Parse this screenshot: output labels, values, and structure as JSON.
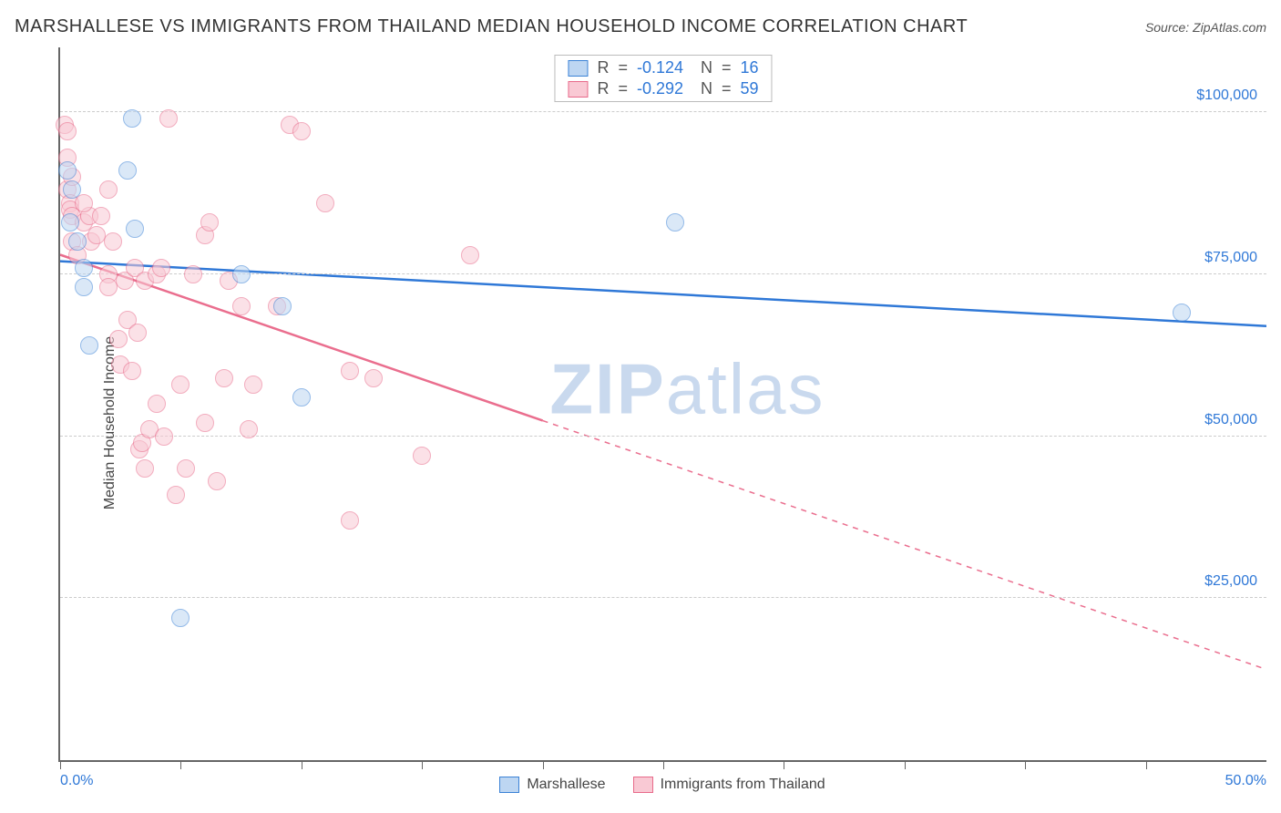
{
  "header": {
    "title": "MARSHALLESE VS IMMIGRANTS FROM THAILAND MEDIAN HOUSEHOLD INCOME CORRELATION CHART",
    "source_prefix": "Source: ",
    "source_name": "ZipAtlas.com"
  },
  "ylabel": "Median Household Income",
  "watermark": {
    "bold": "ZIP",
    "light": "atlas",
    "color": "#c9d9ee"
  },
  "colors": {
    "blue_fill": "#bdd6f2",
    "blue_stroke": "#3b82d6",
    "pink_fill": "#f9c9d4",
    "pink_stroke": "#e86a8a",
    "blue_line": "#2f78d7",
    "pink_line": "#ea6e8e",
    "axis_label": "#2f78d7",
    "grid": "#cccccc",
    "stat_label": "#555555"
  },
  "chart": {
    "type": "scatter-correlation",
    "xlim": [
      0,
      50
    ],
    "ylim": [
      0,
      110000
    ],
    "yticks": [
      {
        "v": 25000,
        "label": "$25,000"
      },
      {
        "v": 50000,
        "label": "$50,000"
      },
      {
        "v": 75000,
        "label": "$75,000"
      },
      {
        "v": 100000,
        "label": "$100,000"
      }
    ],
    "xtick_positions": [
      0,
      5,
      10,
      15,
      20,
      25,
      30,
      35,
      40,
      45
    ],
    "xtick_labels": {
      "0": "0.0%",
      "50": "50.0%"
    },
    "point_radius": 10,
    "point_opacity": 0.55,
    "line_width": 2.5,
    "background": "#ffffff"
  },
  "stats_box": {
    "rows": [
      {
        "swatch": "blue",
        "R_label": "R",
        "eq": "=",
        "R": "-0.124",
        "N_label": "N",
        "N": "16"
      },
      {
        "swatch": "pink",
        "R_label": "R",
        "eq": "=",
        "R": "-0.292",
        "N_label": "N",
        "N": "59"
      }
    ]
  },
  "legend": {
    "items": [
      {
        "swatch": "blue",
        "label": "Marshallese"
      },
      {
        "swatch": "pink",
        "label": "Immigrants from Thailand"
      }
    ]
  },
  "series": {
    "blue": {
      "name": "Marshallese",
      "trend": {
        "x1": 0,
        "y1": 77000,
        "x2": 50,
        "y2": 67000,
        "dashed_from": null
      },
      "points": [
        [
          0.3,
          91000
        ],
        [
          0.4,
          83000
        ],
        [
          0.5,
          88000
        ],
        [
          0.7,
          80000
        ],
        [
          3.0,
          99000
        ],
        [
          3.1,
          82000
        ],
        [
          1.0,
          73000
        ],
        [
          1.2,
          64000
        ],
        [
          1.0,
          76000
        ],
        [
          5.0,
          22000
        ],
        [
          7.5,
          75000
        ],
        [
          9.2,
          70000
        ],
        [
          10.0,
          56000
        ],
        [
          25.5,
          83000
        ],
        [
          46.5,
          69000
        ],
        [
          2.8,
          91000
        ]
      ]
    },
    "pink": {
      "name": "Immigrants from Thailand",
      "trend": {
        "x1": 0,
        "y1": 78000,
        "x2": 50,
        "y2": 14000,
        "dashed_from": 20
      },
      "points": [
        [
          0.2,
          98000
        ],
        [
          0.3,
          97000
        ],
        [
          0.3,
          93000
        ],
        [
          0.3,
          88000
        ],
        [
          0.4,
          86000
        ],
        [
          0.4,
          85000
        ],
        [
          0.5,
          84000
        ],
        [
          0.5,
          80000
        ],
        [
          0.5,
          90000
        ],
        [
          0.7,
          78000
        ],
        [
          1.0,
          83000
        ],
        [
          1.2,
          84000
        ],
        [
          1.3,
          80000
        ],
        [
          1.5,
          81000
        ],
        [
          1.7,
          84000
        ],
        [
          2.0,
          75000
        ],
        [
          2.0,
          73000
        ],
        [
          2.2,
          80000
        ],
        [
          2.4,
          65000
        ],
        [
          2.5,
          61000
        ],
        [
          2.7,
          74000
        ],
        [
          2.8,
          68000
        ],
        [
          3.0,
          60000
        ],
        [
          3.1,
          76000
        ],
        [
          3.2,
          66000
        ],
        [
          3.3,
          48000
        ],
        [
          3.4,
          49000
        ],
        [
          3.5,
          74000
        ],
        [
          3.5,
          45000
        ],
        [
          3.7,
          51000
        ],
        [
          4.0,
          55000
        ],
        [
          4.0,
          75000
        ],
        [
          4.2,
          76000
        ],
        [
          4.3,
          50000
        ],
        [
          4.5,
          99000
        ],
        [
          4.8,
          41000
        ],
        [
          5.0,
          58000
        ],
        [
          5.2,
          45000
        ],
        [
          5.5,
          75000
        ],
        [
          6.0,
          52000
        ],
        [
          6.0,
          81000
        ],
        [
          6.2,
          83000
        ],
        [
          6.5,
          43000
        ],
        [
          6.8,
          59000
        ],
        [
          7.0,
          74000
        ],
        [
          7.5,
          70000
        ],
        [
          7.8,
          51000
        ],
        [
          8.0,
          58000
        ],
        [
          9.0,
          70000
        ],
        [
          9.5,
          98000
        ],
        [
          10.0,
          97000
        ],
        [
          11.0,
          86000
        ],
        [
          12.0,
          60000
        ],
        [
          12.0,
          37000
        ],
        [
          13.0,
          59000
        ],
        [
          15.0,
          47000
        ],
        [
          17.0,
          78000
        ],
        [
          2.0,
          88000
        ],
        [
          1.0,
          86000
        ]
      ]
    }
  }
}
